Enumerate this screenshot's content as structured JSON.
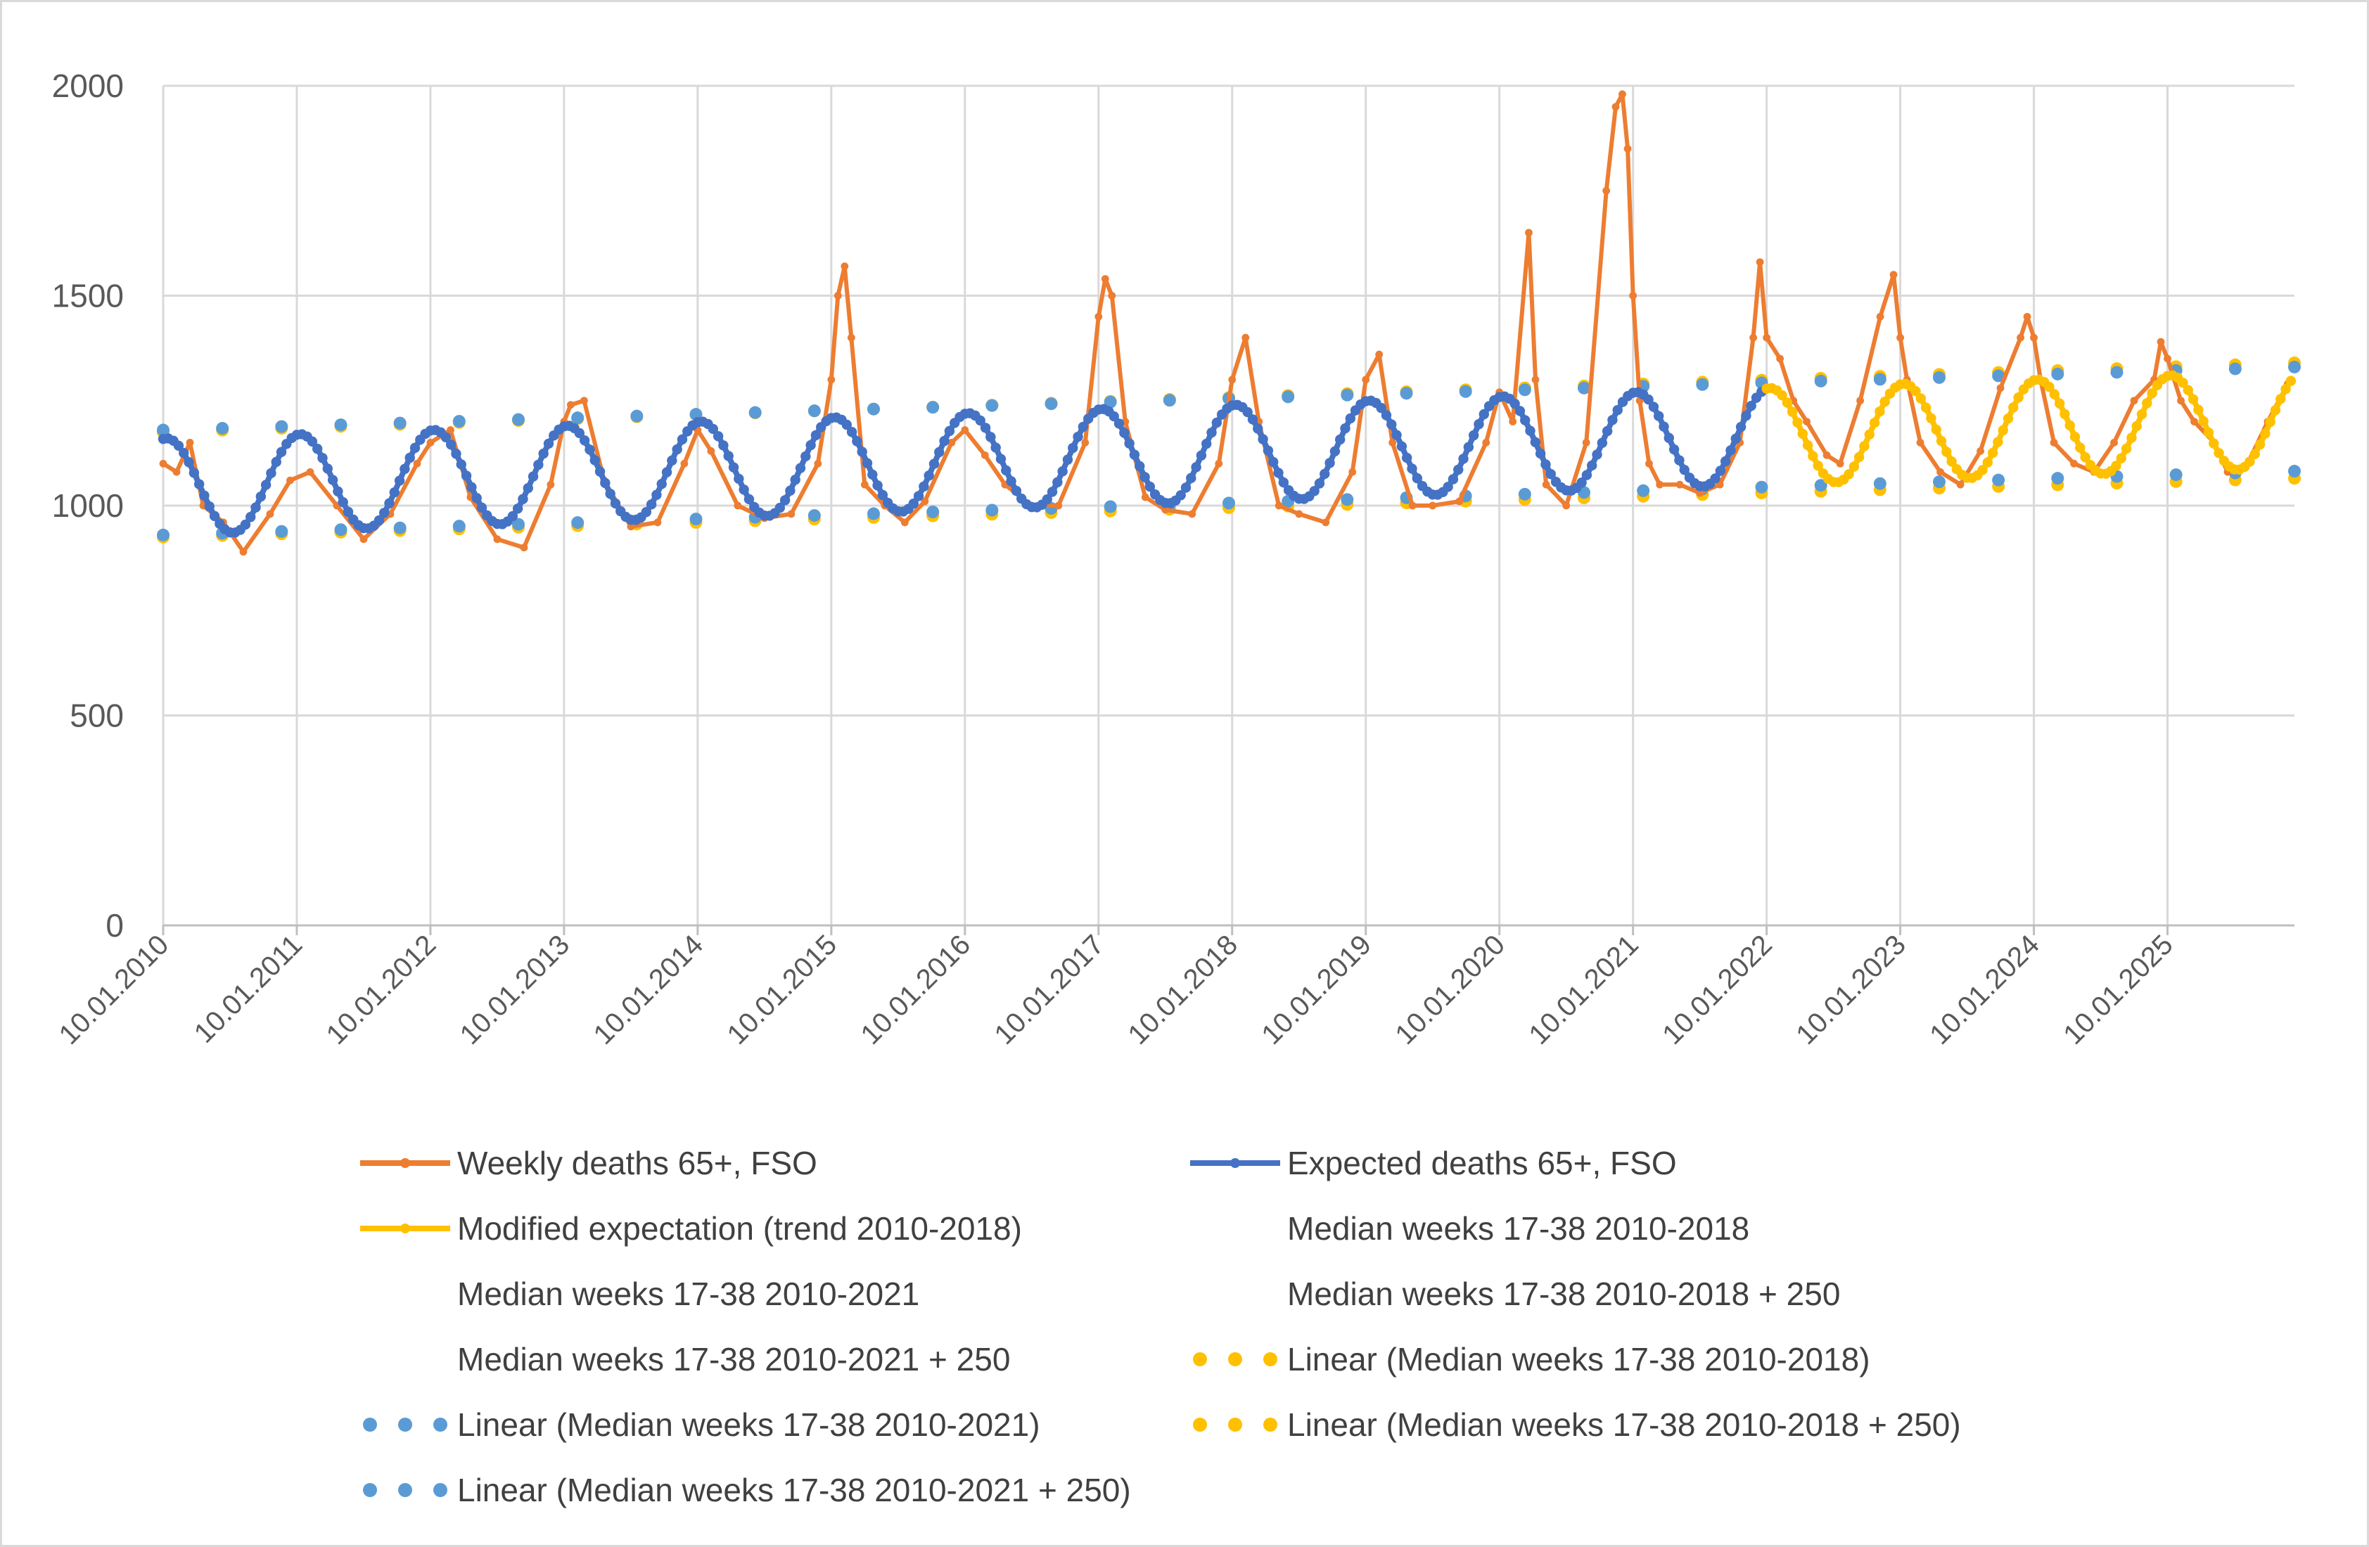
{
  "chart_data": {
    "type": "line",
    "title": "",
    "xlabel": "",
    "ylabel": "",
    "ylim": [
      0,
      2000
    ],
    "yticks": [
      "0",
      "500",
      "1000",
      "1500",
      "2000"
    ],
    "xticks": [
      "10.01.2010",
      "10.01.2011",
      "10.01.2012",
      "10.01.2013",
      "10.01.2014",
      "10.01.2015",
      "10.01.2016",
      "10.01.2017",
      "10.01.2018",
      "10.01.2019",
      "10.01.2020",
      "10.01.2021",
      "10.01.2022",
      "10.01.2023",
      "10.01.2024",
      "10.01.2025"
    ],
    "x_range_years": [
      2010.0,
      2025.95
    ],
    "grid": "vertical",
    "legend_position": "bottom",
    "series": [
      {
        "name": "Weekly deaths 65+, FSO",
        "color": "#ED7D31",
        "style": "line-markers",
        "x_years": [
          2010.0,
          2010.1,
          2010.2,
          2010.3,
          2010.45,
          2010.6,
          2010.8,
          2010.95,
          2011.1,
          2011.3,
          2011.5,
          2011.7,
          2011.9,
          2012.0,
          2012.15,
          2012.3,
          2012.5,
          2012.7,
          2012.9,
          2013.0,
          2013.05,
          2013.15,
          2013.3,
          2013.5,
          2013.7,
          2013.9,
          2014.0,
          2014.1,
          2014.3,
          2014.5,
          2014.7,
          2014.9,
          2015.0,
          2015.05,
          2015.1,
          2015.15,
          2015.25,
          2015.4,
          2015.55,
          2015.7,
          2015.9,
          2016.0,
          2016.15,
          2016.3,
          2016.5,
          2016.7,
          2016.9,
          2017.0,
          2017.05,
          2017.1,
          2017.2,
          2017.35,
          2017.5,
          2017.7,
          2017.9,
          2018.0,
          2018.1,
          2018.2,
          2018.35,
          2018.5,
          2018.7,
          2018.9,
          2019.0,
          2019.1,
          2019.2,
          2019.35,
          2019.5,
          2019.7,
          2019.9,
          2020.0,
          2020.1,
          2020.22,
          2020.27,
          2020.35,
          2020.5,
          2020.65,
          2020.8,
          2020.87,
          2020.92,
          2020.96,
          2021.0,
          2021.05,
          2021.12,
          2021.2,
          2021.35,
          2021.5,
          2021.65,
          2021.8,
          2021.9,
          2021.95,
          2022.0,
          2022.1,
          2022.2,
          2022.3,
          2022.45,
          2022.55,
          2022.7,
          2022.85,
          2022.95,
          2023.0,
          2023.05,
          2023.15,
          2023.3,
          2023.45,
          2023.6,
          2023.75,
          2023.9,
          2023.95,
          2024.0,
          2024.05,
          2024.15,
          2024.3,
          2024.45,
          2024.6,
          2024.75,
          2024.9,
          2024.95,
          2025.0,
          2025.1,
          2025.2,
          2025.35,
          2025.45,
          2025.6,
          2025.75,
          2025.9
        ],
        "values": [
          1100,
          1080,
          1150,
          1000,
          960,
          890,
          980,
          1060,
          1080,
          1000,
          920,
          980,
          1100,
          1150,
          1180,
          1020,
          920,
          900,
          1050,
          1200,
          1240,
          1250,
          1060,
          950,
          960,
          1100,
          1180,
          1130,
          1000,
          970,
          980,
          1100,
          1300,
          1500,
          1570,
          1400,
          1050,
          1000,
          960,
          1010,
          1150,
          1180,
          1120,
          1050,
          1000,
          1000,
          1150,
          1450,
          1540,
          1500,
          1200,
          1020,
          990,
          980,
          1100,
          1300,
          1400,
          1200,
          1000,
          980,
          960,
          1080,
          1300,
          1360,
          1150,
          1000,
          1000,
          1010,
          1150,
          1270,
          1200,
          1650,
          1300,
          1050,
          1000,
          1150,
          1750,
          1950,
          1980,
          1850,
          1500,
          1250,
          1100,
          1050,
          1050,
          1030,
          1050,
          1150,
          1400,
          1580,
          1400,
          1350,
          1250,
          1200,
          1120,
          1100,
          1250,
          1450,
          1550,
          1400,
          1300,
          1150,
          1080,
          1050,
          1130,
          1280,
          1400,
          1450,
          1400,
          1300,
          1150,
          1100,
          1080,
          1150,
          1250,
          1300,
          1390,
          1350,
          1250,
          1200,
          1150,
          1080,
          1100,
          1200,
          1290
        ],
        "amplitude_note": ""
      },
      {
        "name": "Expected deaths 65+, FSO",
        "color": "#4472C4",
        "style": "line-markers",
        "model": {
          "start": 2010.0,
          "end": 2022.0,
          "base_start": 1045,
          "base_slope": 10,
          "amplitude": 115
        }
      },
      {
        "name": "Modified expectation (trend 2010-2018)",
        "color": "#FFC000",
        "style": "line-markers",
        "model": {
          "start": 2022.0,
          "end": 2025.95,
          "base_start": 1045,
          "base_slope": 10,
          "amplitude": 115,
          "shift_base": 1140
        }
      },
      {
        "name": "Median weeks 17-38 2010-2018",
        "color": "",
        "style": "none"
      },
      {
        "name": "Median weeks 17-38 2010-2021",
        "color": "",
        "style": "none"
      },
      {
        "name": "Median weeks 17-38 2010-2018 + 250",
        "color": "",
        "style": "none"
      },
      {
        "name": "Median weeks 17-38 2010-2021 + 250",
        "color": "",
        "style": "none"
      },
      {
        "name": "Linear (Median weeks 17-38 2010-2018)",
        "color": "#FFC000",
        "style": "dots",
        "x_years": [
          2010.0,
          2025.95
        ],
        "values": [
          925,
          1065
        ]
      },
      {
        "name": "Linear (Median weeks 17-38 2010-2021)",
        "color": "#5B9BD5",
        "style": "dots",
        "x_years": [
          2010.0,
          2025.95
        ],
        "values": [
          930,
          1082
        ]
      },
      {
        "name": "Linear (Median weeks 17-38 2010-2018 + 250)",
        "color": "#FFC000",
        "style": "dots",
        "x_years": [
          2010.0,
          2025.95
        ],
        "values": [
          1175,
          1340
        ]
      },
      {
        "name": "Linear (Median weeks 17-38 2010-2021 + 250)",
        "color": "#5B9BD5",
        "style": "dots",
        "x_years": [
          2010.0,
          2025.95
        ],
        "values": [
          1180,
          1330
        ]
      }
    ]
  },
  "legend": {
    "rows": [
      [
        {
          "series": 0
        },
        {
          "series": 1
        }
      ],
      [
        {
          "series": 2
        },
        {
          "series": 3
        }
      ],
      [
        {
          "series": 4
        },
        {
          "series": 5
        }
      ],
      [
        {
          "series": 6
        },
        {
          "series": 7
        }
      ],
      [
        {
          "series": 8
        },
        {
          "series": 9
        }
      ],
      [
        {
          "series": 10
        }
      ]
    ]
  }
}
